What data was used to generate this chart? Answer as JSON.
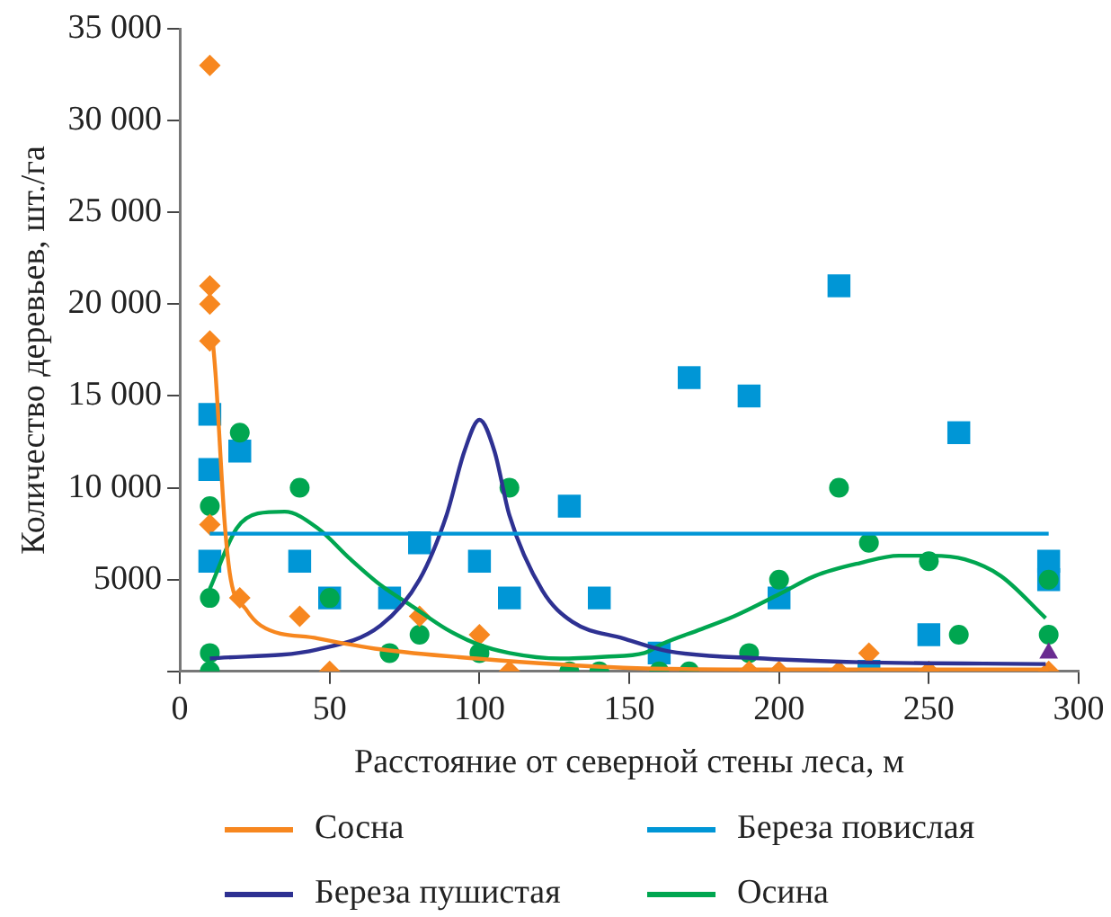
{
  "chart_data": {
    "type": "scatter",
    "xlabel": "Расстояние от северной стены леса, м",
    "ylabel": "Количество деревьев, шт./га",
    "xlim": [
      0,
      300
    ],
    "xticks": [
      0,
      50,
      100,
      150,
      200,
      250,
      300
    ],
    "ylim": [
      0,
      35000
    ],
    "yticks": [
      {
        "value": 0,
        "label": null
      },
      5000,
      {
        "value": 10000,
        "label": "10 000"
      },
      {
        "value": 15000,
        "label": "15 000"
      },
      {
        "value": 20000,
        "label": "20 000"
      },
      {
        "value": 25000,
        "label": "25 000"
      },
      {
        "value": 30000,
        "label": "30 000"
      },
      {
        "value": 35000,
        "label": "35 000"
      }
    ],
    "grid": false,
    "legend": "bottom",
    "series": [
      {
        "name": "Сосна",
        "type": "line",
        "marker": "none",
        "color": "#f7871f",
        "x": [
          11,
          12,
          15,
          17,
          22,
          27,
          46,
          67,
          99,
          148,
          200,
          290
        ],
        "values": [
          18000,
          16000,
          8000,
          5000,
          3400,
          2500,
          1800,
          1200,
          700,
          200,
          100,
          100
        ]
      },
      {
        "name": "Береза повислая",
        "type": "line",
        "marker": "none",
        "color": "#0096d6",
        "x": [
          10,
          290
        ],
        "values": [
          7500,
          7500
        ]
      },
      {
        "name": "Береза пушистая",
        "type": "line",
        "marker": "none",
        "color": "#2e3192",
        "x": [
          10,
          46,
          67,
          80,
          89,
          95,
          100,
          105,
          110,
          121,
          131,
          148,
          163,
          195,
          227,
          289
        ],
        "values": [
          700,
          1200,
          2500,
          5000,
          8500,
          12000,
          13700,
          12000,
          8500,
          4400,
          2700,
          1800,
          1100,
          700,
          500,
          400
        ]
      },
      {
        "name": "Осина",
        "type": "line",
        "marker": "none",
        "color": "#00a650",
        "x": [
          10,
          19,
          26,
          35,
          46,
          57,
          67,
          78,
          89,
          99,
          110,
          127,
          142,
          155,
          161,
          174,
          185,
          200,
          212,
          227,
          240,
          251,
          262,
          274,
          289
        ],
        "values": [
          4500,
          7800,
          8600,
          8700,
          7800,
          6100,
          4700,
          3500,
          2300,
          1500,
          1000,
          700,
          800,
          1000,
          1500,
          2300,
          3000,
          4200,
          5200,
          5900,
          6300,
          6300,
          6100,
          5200,
          2900
        ]
      },
      {
        "marker": "square",
        "color": "#0096d6",
        "x": [
          10,
          10,
          10,
          20,
          40,
          50,
          70,
          80,
          100,
          110,
          130,
          140,
          160,
          170,
          190,
          200,
          220,
          230,
          250,
          260,
          290,
          290
        ],
        "values": [
          14000,
          11000,
          6000,
          12000,
          6000,
          4000,
          4000,
          7000,
          6000,
          4000,
          9000,
          4000,
          1000,
          16000,
          15000,
          4000,
          21000,
          0,
          2000,
          13000,
          6000,
          5000
        ]
      },
      {
        "marker": "circle",
        "color": "#00a650",
        "x": [
          10,
          10,
          10,
          10,
          20,
          40,
          50,
          70,
          80,
          100,
          110,
          130,
          140,
          160,
          170,
          190,
          200,
          220,
          230,
          250,
          260,
          290,
          290
        ],
        "values": [
          9000,
          4000,
          1000,
          0,
          13000,
          10000,
          4000,
          1000,
          2000,
          1000,
          10000,
          0,
          0,
          0,
          0,
          1000,
          5000,
          10000,
          7000,
          6000,
          2000,
          5000,
          2000
        ]
      },
      {
        "marker": "diamond",
        "color": "#f7871f",
        "x": [
          10,
          10,
          10,
          10,
          10,
          20,
          40,
          50,
          80,
          100,
          110,
          190,
          200,
          220,
          230,
          250,
          290
        ],
        "values": [
          33000,
          21000,
          20000,
          18000,
          8000,
          4000,
          3000,
          0,
          3000,
          2000,
          0,
          0,
          0,
          0,
          1000,
          0,
          0
        ]
      },
      {
        "marker": "triangle",
        "color": "#6a2c91",
        "x": [
          290
        ],
        "values": [
          1000
        ]
      }
    ]
  }
}
